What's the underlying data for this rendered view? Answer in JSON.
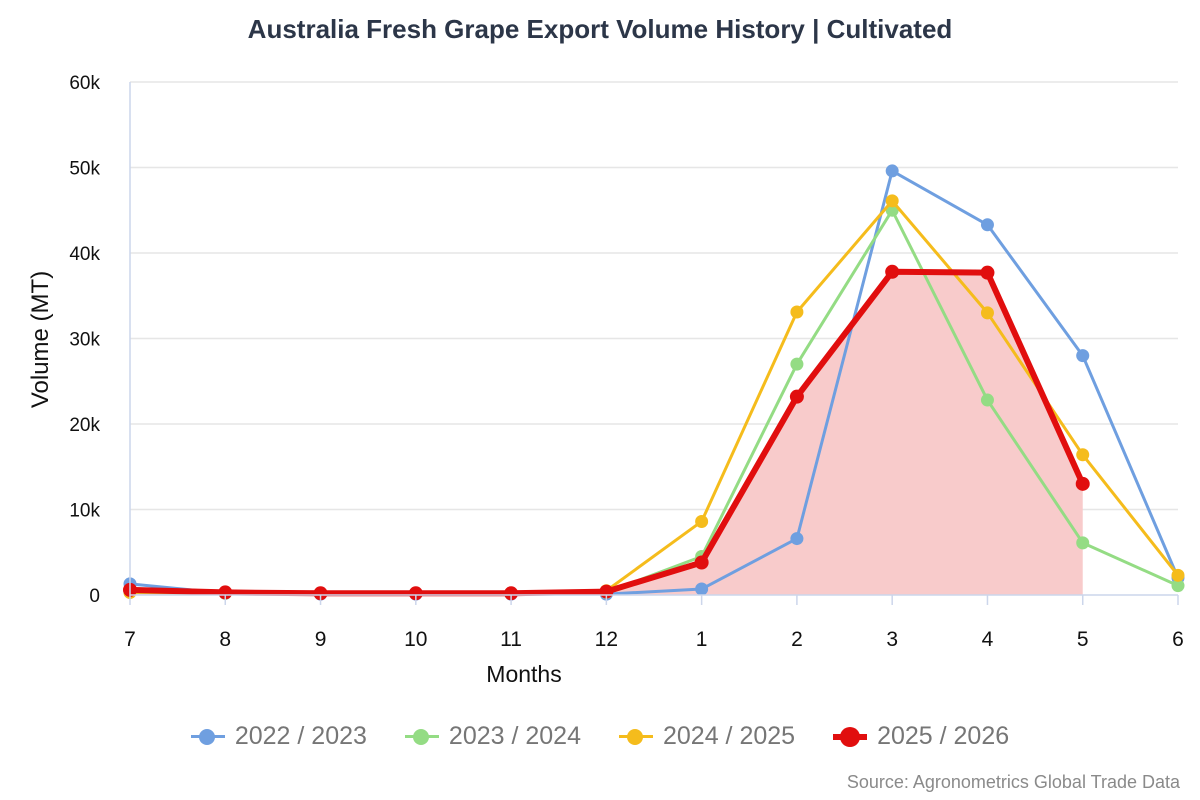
{
  "chart_data": {
    "type": "line",
    "title": "Australia Fresh Grape Export Volume History | Cultivated",
    "xlabel": "Months",
    "ylabel": "Volume (MT)",
    "categories": [
      "7",
      "8",
      "9",
      "10",
      "11",
      "12",
      "1",
      "2",
      "3",
      "4",
      "5",
      "6"
    ],
    "ylim": [
      0,
      60000
    ],
    "yticks": [
      0,
      10000,
      20000,
      30000,
      40000,
      50000,
      60000
    ],
    "ytick_labels": [
      "0",
      "10k",
      "20k",
      "30k",
      "40k",
      "50k",
      "60k"
    ],
    "grid": true,
    "legend_position": "bottom",
    "series": [
      {
        "name": "2022 / 2023",
        "color": "#6f9fe0",
        "values": [
          1300,
          200,
          100,
          100,
          100,
          100,
          700,
          6600,
          49600,
          43300,
          28000,
          2000
        ]
      },
      {
        "name": "2023 / 2024",
        "color": "#94dc84",
        "values": [
          300,
          200,
          200,
          200,
          200,
          300,
          4500,
          27000,
          45000,
          22800,
          6100,
          1100
        ]
      },
      {
        "name": "2024 / 2025",
        "color": "#f5bc1c",
        "values": [
          300,
          300,
          200,
          200,
          200,
          500,
          8600,
          33100,
          46100,
          33000,
          16400,
          2300
        ]
      },
      {
        "name": "2025 / 2026",
        "color": "#e10e0e",
        "highlight": true,
        "fill": "#f8cbcb",
        "values": [
          600,
          300,
          200,
          200,
          200,
          400,
          3800,
          23200,
          37800,
          37700,
          13000,
          null
        ]
      }
    ],
    "source": "Source: Agronometrics Global Trade Data"
  }
}
